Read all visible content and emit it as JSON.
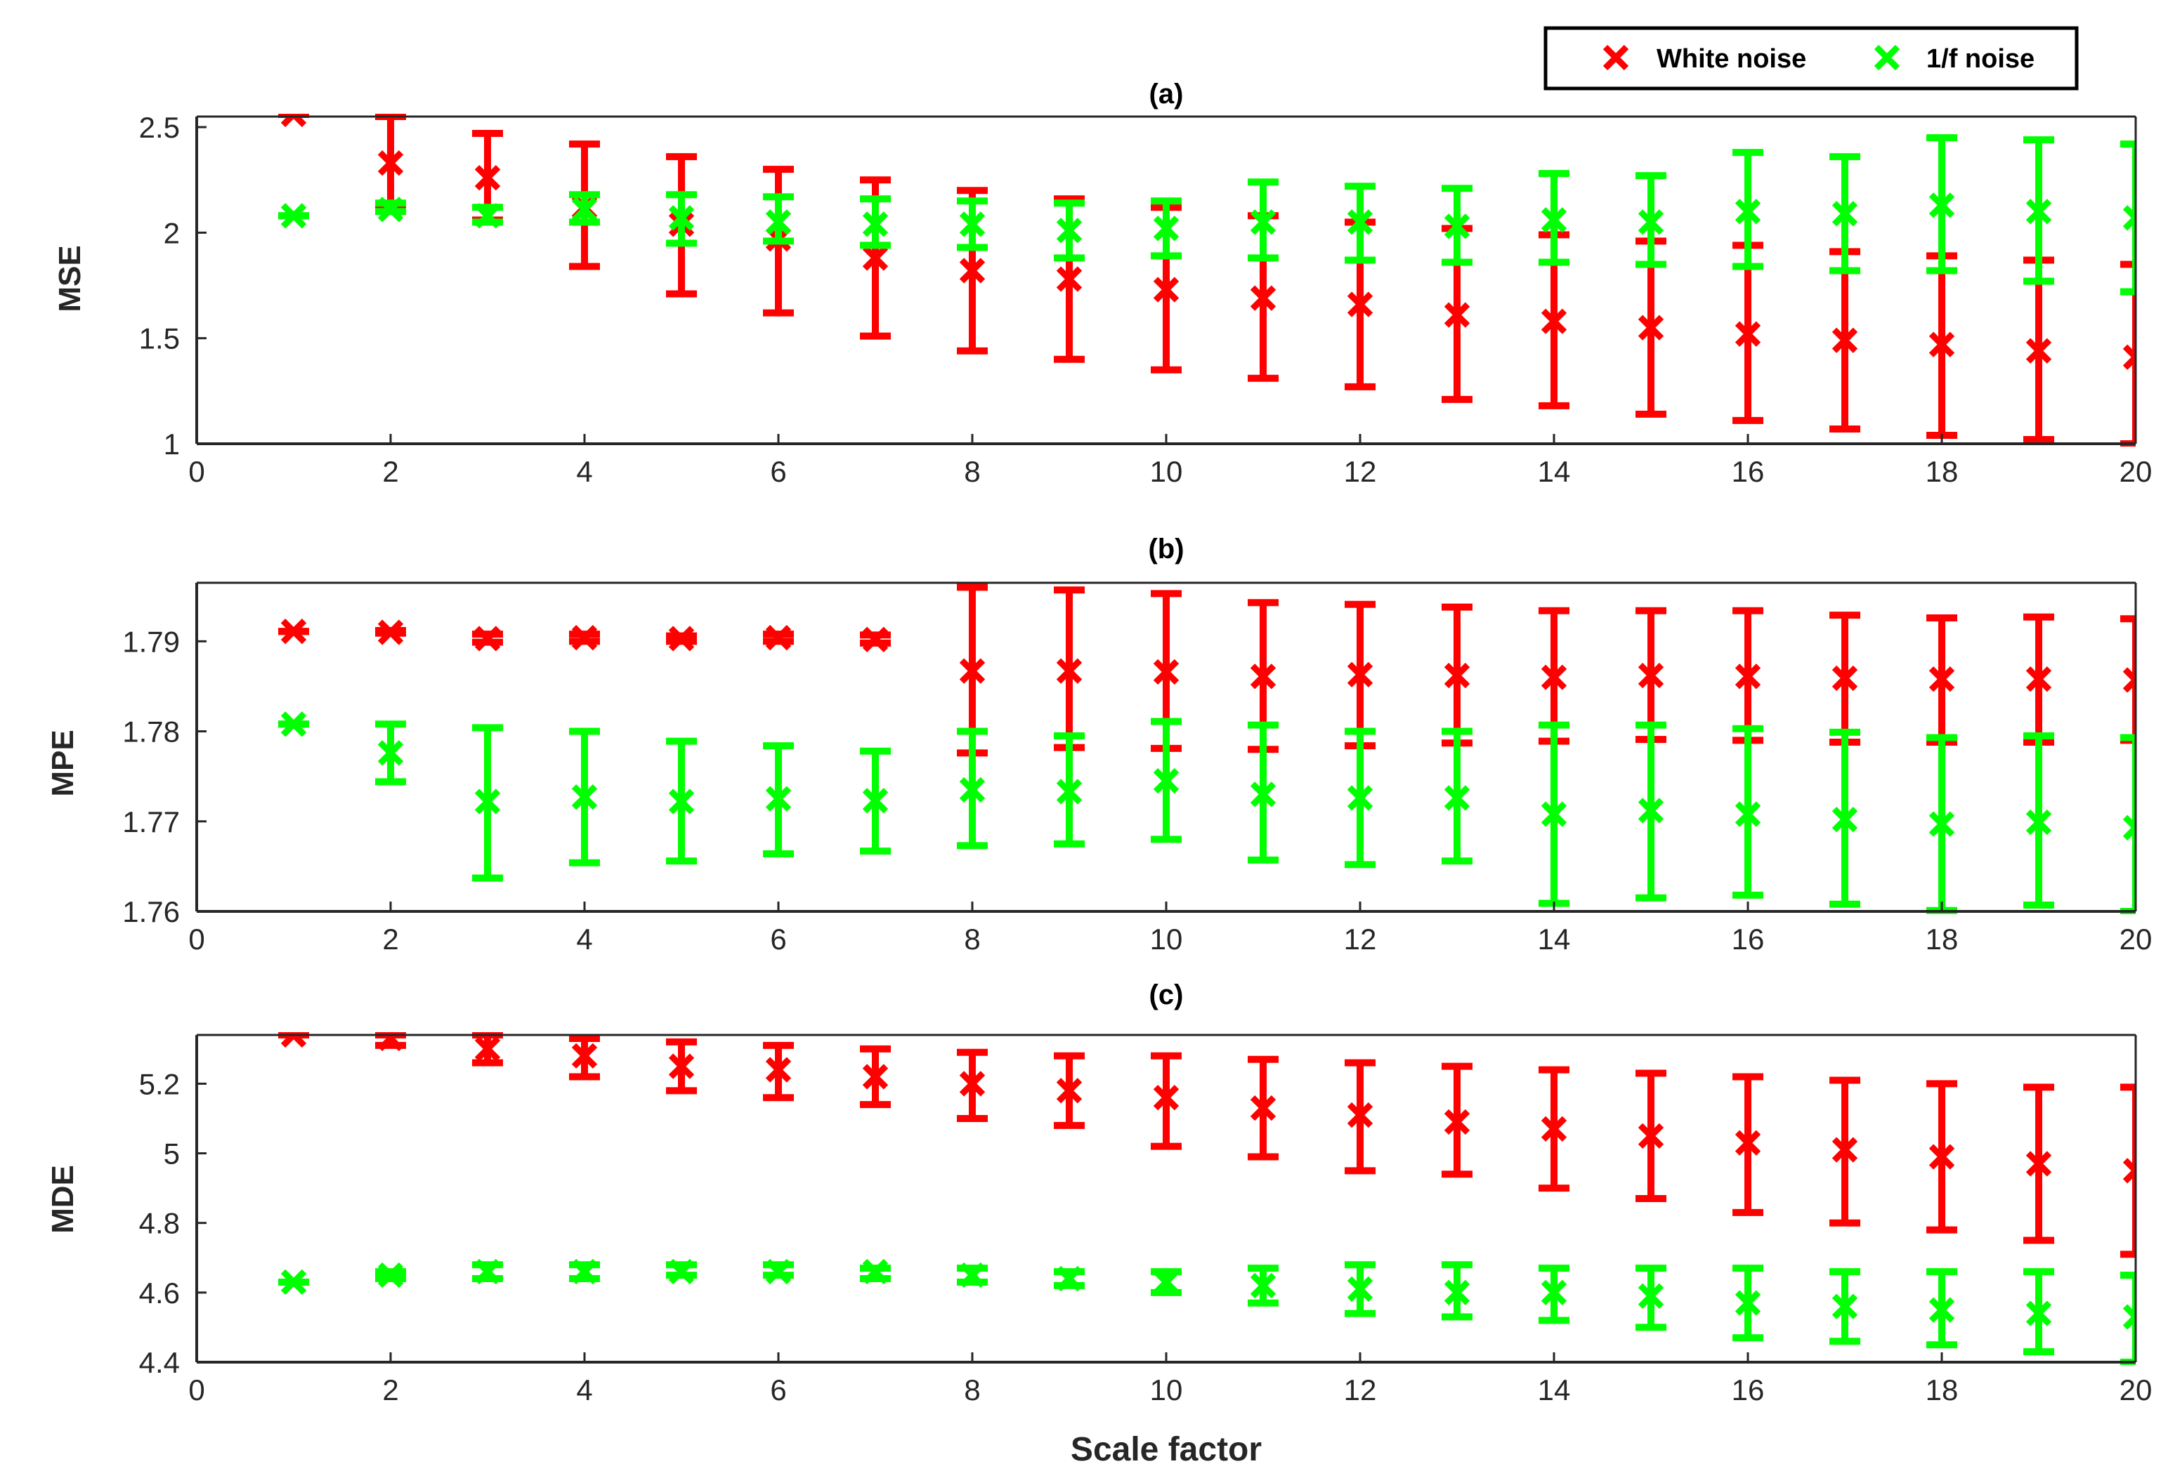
{
  "chart_data": {
    "type": "scatter",
    "xlabel": "Scale factor",
    "legend": {
      "placement": "top-right",
      "entries": [
        {
          "name": "White noise",
          "color": "#ff0000"
        },
        {
          "name": "1/f noise",
          "color": "#00ff00"
        }
      ]
    },
    "panels": [
      {
        "id": "a",
        "title": "(a)",
        "ylabel": "MSE",
        "xlim": [
          0,
          20
        ],
        "ylim": [
          1,
          2.55
        ],
        "xticks": [
          0,
          2,
          4,
          6,
          8,
          10,
          12,
          14,
          16,
          18,
          20
        ],
        "yticks": [
          1,
          1.5,
          2,
          2.5
        ],
        "ytick_labels": [
          "1",
          "1.5",
          "2",
          "2.5"
        ],
        "series": [
          {
            "name": "White noise",
            "color": "#ff0000",
            "x": [
              1,
              2,
              3,
              4,
              5,
              6,
              7,
              8,
              9,
              10,
              11,
              12,
              13,
              14,
              15,
              16,
              17,
              18,
              19,
              20
            ],
            "mean": [
              2.56,
              2.33,
              2.26,
              2.12,
              2.04,
              1.97,
              1.88,
              1.82,
              1.78,
              1.73,
              1.69,
              1.66,
              1.61,
              1.58,
              1.55,
              1.52,
              1.49,
              1.47,
              1.44,
              1.41
            ],
            "low": [
              2.56,
              2.12,
              2.06,
              1.84,
              1.71,
              1.62,
              1.51,
              1.44,
              1.4,
              1.35,
              1.31,
              1.27,
              1.21,
              1.18,
              1.14,
              1.11,
              1.07,
              1.04,
              1.02,
              1.0
            ],
            "high": [
              2.56,
              2.55,
              2.47,
              2.42,
              2.36,
              2.3,
              2.25,
              2.2,
              2.16,
              2.12,
              2.08,
              2.05,
              2.02,
              1.99,
              1.96,
              1.94,
              1.91,
              1.89,
              1.87,
              1.85
            ]
          },
          {
            "name": "1/f noise",
            "color": "#00ff00",
            "x": [
              1,
              2,
              3,
              4,
              5,
              6,
              7,
              8,
              9,
              10,
              11,
              12,
              13,
              14,
              15,
              16,
              17,
              18,
              19,
              20
            ],
            "mean": [
              2.08,
              2.11,
              2.08,
              2.11,
              2.07,
              2.05,
              2.04,
              2.04,
              2.01,
              2.02,
              2.05,
              2.05,
              2.03,
              2.06,
              2.05,
              2.1,
              2.09,
              2.13,
              2.1,
              2.07
            ],
            "low": [
              2.08,
              2.1,
              2.05,
              2.05,
              1.95,
              1.96,
              1.94,
              1.93,
              1.88,
              1.89,
              1.88,
              1.87,
              1.86,
              1.86,
              1.85,
              1.84,
              1.82,
              1.82,
              1.77,
              1.72
            ],
            "high": [
              2.08,
              2.14,
              2.12,
              2.18,
              2.18,
              2.17,
              2.16,
              2.15,
              2.14,
              2.15,
              2.24,
              2.22,
              2.21,
              2.28,
              2.27,
              2.38,
              2.36,
              2.45,
              2.44,
              2.42
            ]
          }
        ]
      },
      {
        "id": "b",
        "title": "(b)",
        "ylabel": "MPE",
        "xlim": [
          0,
          20
        ],
        "ylim": [
          1.76,
          1.7965
        ],
        "xticks": [
          0,
          2,
          4,
          6,
          8,
          10,
          12,
          14,
          16,
          18,
          20
        ],
        "yticks": [
          1.76,
          1.77,
          1.78,
          1.79
        ],
        "ytick_labels": [
          "1.76",
          "1.77",
          "1.78",
          "1.79"
        ],
        "series": [
          {
            "name": "White noise",
            "color": "#ff0000",
            "x": [
              1,
              2,
              3,
              4,
              5,
              6,
              7,
              8,
              9,
              10,
              11,
              12,
              13,
              14,
              15,
              16,
              17,
              18,
              19,
              20
            ],
            "mean": [
              1.7911,
              1.791,
              1.7903,
              1.7904,
              1.7903,
              1.7904,
              1.7902,
              1.7867,
              1.7867,
              1.7866,
              1.7861,
              1.7863,
              1.7862,
              1.786,
              1.7862,
              1.7861,
              1.7859,
              1.7858,
              1.7858,
              1.7857
            ],
            "low": [
              1.7911,
              1.7909,
              1.7899,
              1.79,
              1.79,
              1.79,
              1.7898,
              1.7776,
              1.7782,
              1.7781,
              1.778,
              1.7784,
              1.7787,
              1.7789,
              1.7791,
              1.779,
              1.7788,
              1.7788,
              1.7788,
              1.779
            ],
            "high": [
              1.7911,
              1.7912,
              1.7908,
              1.7908,
              1.7906,
              1.7908,
              1.7907,
              1.796,
              1.7957,
              1.7953,
              1.7943,
              1.7941,
              1.7938,
              1.7934,
              1.7934,
              1.7934,
              1.7929,
              1.7926,
              1.7927,
              1.7925
            ]
          },
          {
            "name": "1/f noise",
            "color": "#00ff00",
            "x": [
              1,
              2,
              3,
              4,
              5,
              6,
              7,
              8,
              9,
              10,
              11,
              12,
              13,
              14,
              15,
              16,
              17,
              18,
              19,
              20
            ],
            "mean": [
              1.7808,
              1.7776,
              1.7722,
              1.7727,
              1.7722,
              1.7725,
              1.7723,
              1.7735,
              1.7733,
              1.7745,
              1.773,
              1.7726,
              1.7726,
              1.7708,
              1.7712,
              1.7708,
              1.7702,
              1.7697,
              1.7699,
              1.7693
            ],
            "low": [
              1.7808,
              1.7744,
              1.7637,
              1.7654,
              1.7656,
              1.7664,
              1.7667,
              1.7673,
              1.7675,
              1.768,
              1.7657,
              1.7652,
              1.7656,
              1.7609,
              1.7615,
              1.7618,
              1.7608,
              1.7601,
              1.7607,
              1.76
            ],
            "high": [
              1.7808,
              1.7808,
              1.7804,
              1.78,
              1.7789,
              1.7784,
              1.7778,
              1.78,
              1.7795,
              1.7811,
              1.7807,
              1.78,
              1.78,
              1.7807,
              1.7807,
              1.7803,
              1.7799,
              1.7793,
              1.7795,
              1.7793
            ]
          }
        ]
      },
      {
        "id": "c",
        "title": "(c)",
        "ylabel": "MDE",
        "xlim": [
          0,
          20
        ],
        "ylim": [
          4.4,
          5.34
        ],
        "xticks": [
          0,
          2,
          4,
          6,
          8,
          10,
          12,
          14,
          16,
          18,
          20
        ],
        "yticks": [
          4.4,
          4.6,
          4.8,
          5,
          5.2
        ],
        "ytick_labels": [
          "4.4",
          "4.6",
          "4.8",
          "5",
          "5.2"
        ],
        "series": [
          {
            "name": "White noise",
            "color": "#ff0000",
            "x": [
              1,
              2,
              3,
              4,
              5,
              6,
              7,
              8,
              9,
              10,
              11,
              12,
              13,
              14,
              15,
              16,
              17,
              18,
              19,
              20
            ],
            "mean": [
              5.34,
              5.33,
              5.3,
              5.28,
              5.25,
              5.24,
              5.22,
              5.2,
              5.18,
              5.16,
              5.13,
              5.11,
              5.09,
              5.07,
              5.05,
              5.03,
              5.01,
              4.99,
              4.97,
              4.95
            ],
            "low": [
              5.34,
              5.31,
              5.26,
              5.22,
              5.18,
              5.16,
              5.14,
              5.1,
              5.08,
              5.02,
              4.99,
              4.95,
              4.94,
              4.9,
              4.87,
              4.83,
              4.8,
              4.78,
              4.75,
              4.71
            ],
            "high": [
              5.34,
              5.34,
              5.34,
              5.33,
              5.32,
              5.31,
              5.3,
              5.29,
              5.28,
              5.28,
              5.27,
              5.26,
              5.25,
              5.24,
              5.23,
              5.22,
              5.21,
              5.2,
              5.19,
              5.19
            ]
          },
          {
            "name": "1/f noise",
            "color": "#00ff00",
            "x": [
              1,
              2,
              3,
              4,
              5,
              6,
              7,
              8,
              9,
              10,
              11,
              12,
              13,
              14,
              15,
              16,
              17,
              18,
              19,
              20
            ],
            "mean": [
              4.63,
              4.65,
              4.66,
              4.66,
              4.66,
              4.66,
              4.66,
              4.65,
              4.64,
              4.63,
              4.62,
              4.61,
              4.6,
              4.6,
              4.59,
              4.57,
              4.56,
              4.55,
              4.54,
              4.53
            ],
            "low": [
              4.63,
              4.64,
              4.64,
              4.64,
              4.65,
              4.65,
              4.64,
              4.63,
              4.62,
              4.6,
              4.57,
              4.54,
              4.53,
              4.52,
              4.5,
              4.47,
              4.46,
              4.45,
              4.43,
              4.4
            ],
            "high": [
              4.63,
              4.66,
              4.68,
              4.68,
              4.68,
              4.68,
              4.67,
              4.67,
              4.66,
              4.66,
              4.67,
              4.68,
              4.68,
              4.67,
              4.67,
              4.67,
              4.66,
              4.66,
              4.66,
              4.65
            ]
          }
        ]
      }
    ]
  }
}
